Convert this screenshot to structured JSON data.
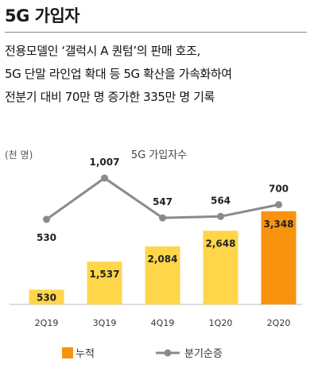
{
  "header": {
    "title": "5G 가입자",
    "description_lines": [
      "전용모델인 ‘갤럭시 A 퀀텀’의 판매 호조,",
      "5G 단말 라인업 확대 등 5G 확산을 가속화하여",
      "전분기 대비 70만 명 증가한 335만 명 기록"
    ]
  },
  "chart_data": {
    "type": "bar",
    "title": "5G 가입자수",
    "unit_label": "(천 명)",
    "categories": [
      "2Q19",
      "3Q19",
      "4Q19",
      "1Q20",
      "2Q20"
    ],
    "series": [
      {
        "name": "누적",
        "type": "bar",
        "values": [
          530,
          1537,
          2084,
          2648,
          3348
        ],
        "labels": [
          "530",
          "1,537",
          "2,084",
          "2,648",
          "3,348"
        ],
        "colors": [
          "#ffd54a",
          "#ffd54a",
          "#ffd54a",
          "#ffd54a",
          "#f7930f"
        ]
      },
      {
        "name": "분기순증",
        "type": "line",
        "values": [
          530,
          1007,
          547,
          564,
          700
        ],
        "labels": [
          "530",
          "1,007",
          "547",
          "564",
          "700"
        ],
        "color": "#8a8a8a"
      }
    ],
    "legend_position": "bottom",
    "colors": {
      "bar": "#ffd54a",
      "highlight": "#f7930f",
      "line": "#8a8a8a",
      "axis": "#bbbbbb"
    }
  }
}
